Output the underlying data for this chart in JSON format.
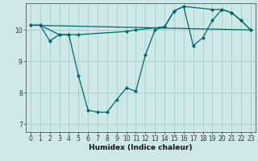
{
  "xlabel": "Humidex (Indice chaleur)",
  "bg_color": "#cce8e8",
  "grid_color": "#aacccc",
  "line_color": "#006868",
  "xlim": [
    -0.5,
    23.5
  ],
  "ylim": [
    6.75,
    10.85
  ],
  "yticks": [
    7,
    8,
    9,
    10
  ],
  "xticks": [
    0,
    1,
    2,
    3,
    4,
    5,
    6,
    7,
    8,
    9,
    10,
    11,
    12,
    13,
    14,
    15,
    16,
    17,
    18,
    19,
    20,
    21,
    22,
    23
  ],
  "series_main": {
    "x": [
      0,
      1,
      2,
      3,
      4,
      5,
      6,
      7,
      8,
      9,
      10,
      11,
      12,
      13,
      14,
      15,
      16,
      17,
      18,
      19,
      20,
      21,
      22,
      23
    ],
    "y": [
      10.15,
      10.15,
      9.65,
      9.85,
      9.85,
      8.55,
      7.45,
      7.38,
      7.38,
      7.78,
      8.15,
      8.05,
      9.2,
      10.0,
      10.1,
      10.6,
      10.75,
      9.5,
      9.75,
      10.3,
      10.65,
      10.55,
      10.3,
      10.0
    ]
  },
  "series_straight": {
    "x": [
      0,
      23
    ],
    "y": [
      10.15,
      10.0
    ]
  },
  "series_upper": {
    "x": [
      0,
      1,
      3,
      4,
      5,
      10,
      11,
      14,
      15,
      16,
      19,
      20,
      21,
      22,
      23
    ],
    "y": [
      10.15,
      10.15,
      9.85,
      9.85,
      9.85,
      9.95,
      10.0,
      10.1,
      10.6,
      10.75,
      10.65,
      10.65,
      10.55,
      10.3,
      10.0
    ]
  }
}
